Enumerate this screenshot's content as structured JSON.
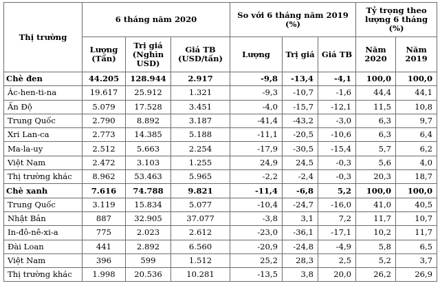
{
  "headers": {
    "market": "Thị trường",
    "period_2020": "6 tháng năm 2020",
    "compare_2019": "So với 6 tháng năm 2019 (%)",
    "share": "Tỷ trọng theo lượng 6 tháng (%)",
    "volume": "Lượng (Tấn)",
    "value": "Trị giá (Nghìn USD)",
    "avg_price": "Giá TB (USD/tấn)",
    "cmp_volume": "Lượng",
    "cmp_value": "Trị giá",
    "cmp_price": "Giá TB",
    "year_2020": "Năm 2020",
    "year_2019": "Năm 2019"
  },
  "rows": [
    {
      "market": "Chè đen",
      "volume": "44.205",
      "value": "128.944",
      "price": "2.917",
      "d_volume": "-9,8",
      "d_value": "-13,4",
      "d_price": "-4,1",
      "s2020": "100,0",
      "s2019": "100,0",
      "group": true
    },
    {
      "market": "Ác-hen-ti-na",
      "volume": "19.617",
      "value": "25.912",
      "price": "1.321",
      "d_volume": "-9,3",
      "d_value": "-10,7",
      "d_price": "-1,6",
      "s2020": "44,4",
      "s2019": "44,1",
      "group": false
    },
    {
      "market": "Ấn Độ",
      "volume": "5.079",
      "value": "17.528",
      "price": "3.451",
      "d_volume": "-4,0",
      "d_value": "-15,7",
      "d_price": "-12,1",
      "s2020": "11,5",
      "s2019": "10,8",
      "group": false
    },
    {
      "market": "Trung Quốc",
      "volume": "2.790",
      "value": "8.892",
      "price": "3.187",
      "d_volume": "-41,4",
      "d_value": "-43,2",
      "d_price": "-3,0",
      "s2020": "6,3",
      "s2019": "9,7",
      "group": false
    },
    {
      "market": "Xri Lan-ca",
      "volume": "2.773",
      "value": "14.385",
      "price": "5.188",
      "d_volume": "-11,1",
      "d_value": "-20,5",
      "d_price": "-10,6",
      "s2020": "6,3",
      "s2019": "6,4",
      "group": false
    },
    {
      "market": "Ma-la-uy",
      "volume": "2.512",
      "value": "5.663",
      "price": "2.254",
      "d_volume": "-17,9",
      "d_value": "-30,5",
      "d_price": "-15,4",
      "s2020": "5,7",
      "s2019": "6,2",
      "group": false
    },
    {
      "market": "Việt Nam",
      "volume": "2.472",
      "value": "3.103",
      "price": "1.255",
      "d_volume": "24,9",
      "d_value": "24,5",
      "d_price": "-0,3",
      "s2020": "5,6",
      "s2019": "4,0",
      "group": false
    },
    {
      "market": "Thị trường khác",
      "volume": "8.962",
      "value": "53.463",
      "price": "5.965",
      "d_volume": "-2,2",
      "d_value": "-2,4",
      "d_price": "-0,3",
      "s2020": "20,3",
      "s2019": "18,7",
      "group": false
    },
    {
      "market": "Chè xanh",
      "volume": "7.616",
      "value": "74.788",
      "price": "9.821",
      "d_volume": "-11,4",
      "d_value": "-6,8",
      "d_price": "5,2",
      "s2020": "100,0",
      "s2019": "100,0",
      "group": true
    },
    {
      "market": "Trung Quốc",
      "volume": "3.119",
      "value": "15.834",
      "price": "5.077",
      "d_volume": "-10,4",
      "d_value": "-24,7",
      "d_price": "-16,0",
      "s2020": "41,0",
      "s2019": "40,5",
      "group": false
    },
    {
      "market": "Nhật Bản",
      "volume": "887",
      "value": "32.905",
      "price": "37.077",
      "d_volume": "-3,8",
      "d_value": "3,1",
      "d_price": "7,2",
      "s2020": "11,7",
      "s2019": "10,7",
      "group": false
    },
    {
      "market": "In-đô-nê-xi-a",
      "volume": "775",
      "value": "2.023",
      "price": "2.612",
      "d_volume": "-23,0",
      "d_value": "-36,1",
      "d_price": "-17,1",
      "s2020": "10,2",
      "s2019": "11,7",
      "group": false
    },
    {
      "market": "Đài Loan",
      "volume": "441",
      "value": "2.892",
      "price": "6.560",
      "d_volume": "-20,9",
      "d_value": "-24,8",
      "d_price": "-4,9",
      "s2020": "5,8",
      "s2019": "6,5",
      "group": false
    },
    {
      "market": "Việt Nam",
      "volume": "396",
      "value": "599",
      "price": "1.512",
      "d_volume": "25,2",
      "d_value": "28,3",
      "d_price": "2,5",
      "s2020": "5,2",
      "s2019": "3,7",
      "group": false
    },
    {
      "market": "Thị trường khác",
      "volume": "1.998",
      "value": "20.536",
      "price": "10.281",
      "d_volume": "-13,5",
      "d_value": "3,8",
      "d_price": "20,0",
      "s2020": "26,2",
      "s2019": "26,9",
      "group": false
    }
  ]
}
